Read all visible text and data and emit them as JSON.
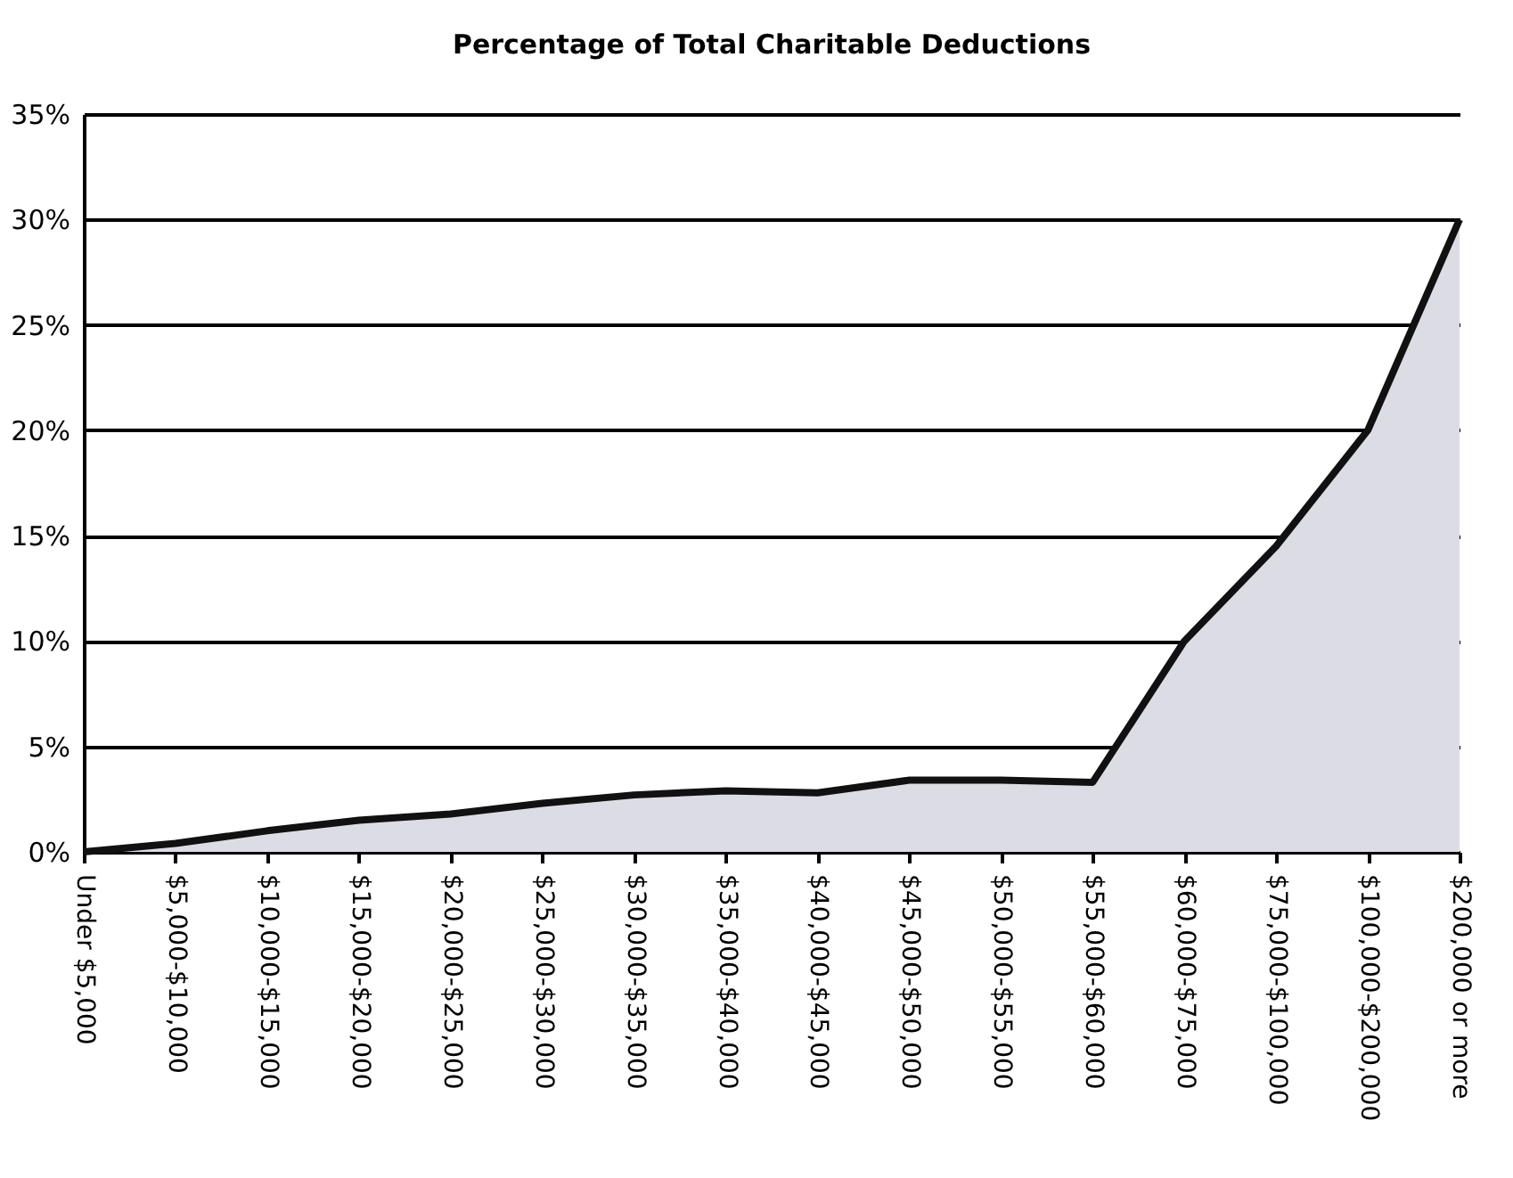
{
  "chart_data": {
    "type": "area",
    "title": "Percentage of Total Charitable Deductions",
    "categories": [
      "Under $5,000",
      "$5,000-$10,000",
      "$10,000-$15,000",
      "$15,000-$20,000",
      "$20,000-$25,000",
      "$25,000-$30,000",
      "$30,000-$35,000",
      "$35,000-$40,000",
      "$40,000-$45,000",
      "$45,000-$50,000",
      "$50,000-$55,000",
      "$55,000-$60,000",
      "$60,000-$75,000",
      "$75,000-$100,000",
      "$100,000-$200,000",
      "$200,000 or more"
    ],
    "series": [
      {
        "color": "#dcdce4",
        "values": [
          0,
          0.4,
          1,
          1.5,
          1.8,
          2.3,
          2.7,
          2.9,
          2.8,
          3.4,
          3.4,
          3.3,
          10,
          14.5,
          20,
          30
        ]
      }
    ],
    "ylim": [
      0,
      35
    ],
    "yticks": [
      {
        "value": 0,
        "label": "0%"
      },
      {
        "value": 5,
        "label": "5%"
      },
      {
        "value": 10,
        "label": "10%"
      },
      {
        "value": 15,
        "label": "15%"
      },
      {
        "value": 20,
        "label": "20%"
      },
      {
        "value": 25,
        "label": "25%"
      },
      {
        "value": 30,
        "label": "30%"
      },
      {
        "value": 35,
        "label": "35%"
      }
    ],
    "grid": "y",
    "line_style": "solid"
  }
}
